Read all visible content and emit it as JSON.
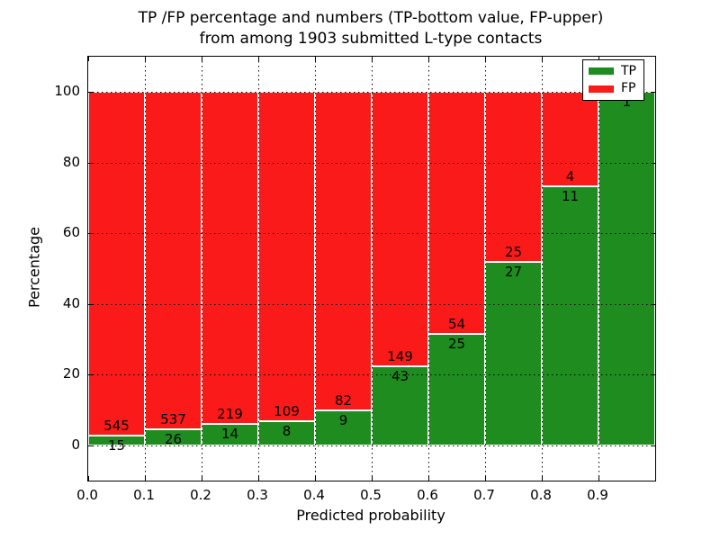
{
  "figure": {
    "title_line1": "TP /FP percentage and numbers (TP-bottom value, FP-upper)",
    "title_line2": "from among 1903 submitted L-type contacts",
    "xlabel": "Predicted probability",
    "ylabel": "Percentage"
  },
  "legend": {
    "position": "upper right",
    "items": [
      {
        "label": "TP",
        "color": "#1f8c1f"
      },
      {
        "label": "FP",
        "color": "#fa1a1a"
      }
    ]
  },
  "colors": {
    "tp": "#1f8c1f",
    "fp": "#fa1a1a",
    "bar_edge": "#ffffff",
    "grid": "#000000",
    "axes": "#000000",
    "background": "#ffffff",
    "annotation_text": "#000000"
  },
  "chart_data": {
    "type": "bar",
    "stacked": true,
    "title": "TP /FP percentage and numbers (TP-bottom value, FP-upper) from among 1903 submitted L-type contacts",
    "xlabel": "Predicted probability",
    "ylabel": "Percentage",
    "total_submitted_contacts": 1903,
    "bin_edges": [
      0.0,
      0.1,
      0.2,
      0.3,
      0.4,
      0.5,
      0.6,
      0.7,
      0.8,
      0.9,
      1.0
    ],
    "x_tick_labels": [
      "0.0",
      "0.1",
      "0.2",
      "0.3",
      "0.4",
      "0.5",
      "0.6",
      "0.7",
      "0.8",
      "0.9"
    ],
    "y_ticks": [
      0,
      20,
      40,
      60,
      80,
      100
    ],
    "y_tick_labels": [
      "0",
      "20",
      "40",
      "60",
      "80",
      "100"
    ],
    "xlim": [
      0.0,
      1.0
    ],
    "ylim": [
      -10,
      110
    ],
    "grid": true,
    "legend_position": "upper right",
    "series": [
      {
        "name": "TP",
        "counts": [
          15,
          26,
          14,
          8,
          9,
          43,
          25,
          27,
          11,
          1
        ]
      },
      {
        "name": "FP",
        "counts": [
          545,
          537,
          219,
          109,
          82,
          149,
          54,
          25,
          4,
          0
        ]
      }
    ],
    "tp_percent_of_bin": [
      2.7,
      4.6,
      6.0,
      6.8,
      9.9,
      22.4,
      31.6,
      51.9,
      73.3,
      100.0
    ],
    "tp_labels": [
      "15",
      "26",
      "14",
      "8",
      "9",
      "43",
      "25",
      "27",
      "11",
      "1"
    ],
    "fp_labels": [
      "545",
      "537",
      "219",
      "109",
      "82",
      "149",
      "54",
      "25",
      "4",
      ""
    ]
  }
}
